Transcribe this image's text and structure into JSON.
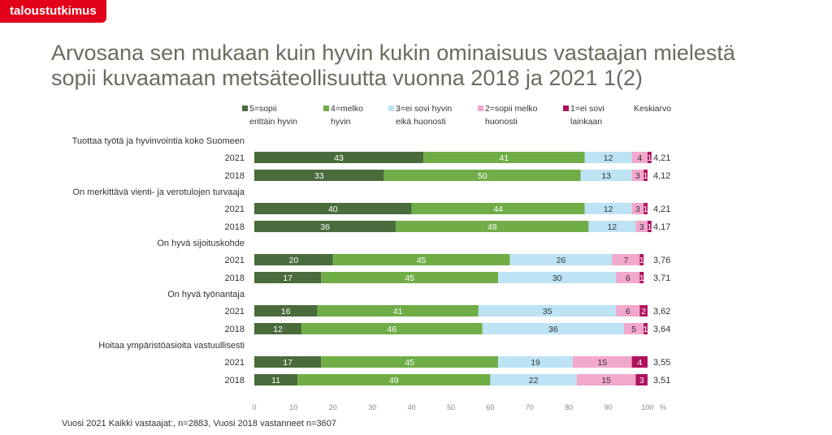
{
  "brand": "taloustutkimus",
  "title_line1": "Arvosana sen mukaan kuin hyvin kukin ominaisuus vastaajan mielestä",
  "title_line2": "sopii kuvaamaan metsäteollisuutta vuonna 2018 ja 2021 1(2)",
  "footnote": "Vuosi 2021 Kaikki vastaajat:, n=2883, Vuosi 2018 vastanneet n=3607",
  "chart_data": {
    "type": "bar",
    "orientation": "horizontal",
    "stacked": true,
    "xlim": [
      0,
      100
    ],
    "x_ticks": [
      "0",
      "10",
      "20",
      "30",
      "40",
      "50",
      "60",
      "70",
      "80",
      "90",
      "100"
    ],
    "x_unit": "%",
    "average_header": "Keskiarvo",
    "legend": [
      {
        "line1": "5=sopii",
        "line2": "erittäin hyvin",
        "color": "#4a6b3c"
      },
      {
        "line1": "4=melko",
        "line2": "hyvin",
        "color": "#70ad47"
      },
      {
        "line1": "3=ei sovi hyvin",
        "line2": "eikä huonosti",
        "color": "#bde3f5"
      },
      {
        "line1": "2=sopii melko",
        "line2": "huonosti",
        "color": "#f2a7cc"
      },
      {
        "line1": "1=ei sovi",
        "line2": "lainkaan",
        "color": "#b0125e"
      }
    ],
    "groups": [
      {
        "label": "Tuottaa työtä ja hyvinvointia koko Suomeen",
        "rows": [
          {
            "year": "2021",
            "values": [
              43,
              41,
              12,
              4,
              1
            ],
            "average": "4,21"
          },
          {
            "year": "2018",
            "values": [
              33,
              50,
              13,
              3,
              1
            ],
            "average": "4,12"
          }
        ]
      },
      {
        "label": "On merkittävä vienti- ja verotulojen turvaaja",
        "rows": [
          {
            "year": "2021",
            "values": [
              40,
              44,
              12,
              3,
              1
            ],
            "average": "4,21"
          },
          {
            "year": "2018",
            "values": [
              36,
              49,
              12,
              3,
              1
            ],
            "average": "4,17"
          }
        ]
      },
      {
        "label": "On hyvä sijoituskohde",
        "rows": [
          {
            "year": "2021",
            "values": [
              20,
              45,
              26,
              7,
              1
            ],
            "average": "3,76"
          },
          {
            "year": "2018",
            "values": [
              17,
              45,
              30,
              6,
              1
            ],
            "average": "3,71"
          }
        ]
      },
      {
        "label": "On hyvä työnantaja",
        "rows": [
          {
            "year": "2021",
            "values": [
              16,
              41,
              35,
              6,
              2
            ],
            "average": "3,62"
          },
          {
            "year": "2018",
            "values": [
              12,
              46,
              36,
              5,
              1
            ],
            "average": "3,64"
          }
        ]
      },
      {
        "label": "Hoitaa ympäristöasioita vastuullisesti",
        "rows": [
          {
            "year": "2021",
            "values": [
              17,
              45,
              19,
              15,
              4
            ],
            "average": "3,55"
          },
          {
            "year": "2018",
            "values": [
              11,
              49,
              22,
              15,
              3
            ],
            "average": "3,51"
          }
        ]
      }
    ]
  }
}
